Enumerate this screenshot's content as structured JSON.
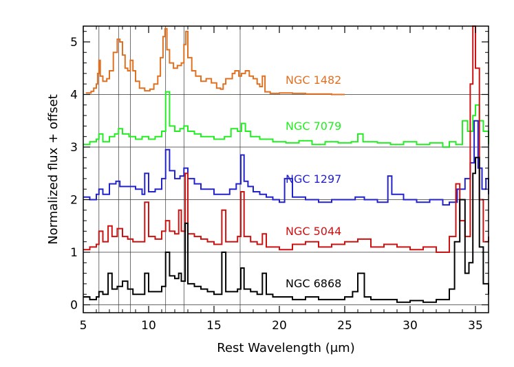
{
  "chart_data": {
    "type": "line",
    "xlabel": "Rest Wavelength (μm)",
    "ylabel": "Normalized flux + offset",
    "xlim": [
      5,
      36
    ],
    "ylim": [
      -0.15,
      5.3
    ],
    "xticks": [
      5,
      10,
      15,
      20,
      25,
      30,
      35
    ],
    "yticks": [
      0,
      1,
      2,
      3,
      4,
      5
    ],
    "horizontal_reference_lines": [
      0,
      1,
      2,
      3,
      4
    ],
    "vertical_reference_lines": [
      6.2,
      7.7,
      8.6,
      11.3,
      12.7,
      17.0
    ],
    "grid": false,
    "series": [
      {
        "name": "NGC 1482",
        "color": "#e07020",
        "offset": 4,
        "x": [
          5.2,
          5.6,
          5.8,
          6.0,
          6.1,
          6.2,
          6.3,
          6.5,
          6.8,
          7.0,
          7.3,
          7.6,
          7.8,
          8.0,
          8.2,
          8.4,
          8.6,
          8.8,
          9.0,
          9.3,
          9.7,
          10.1,
          10.4,
          10.7,
          10.9,
          11.1,
          11.25,
          11.4,
          11.6,
          11.9,
          12.2,
          12.5,
          12.7,
          12.85,
          13.0,
          13.3,
          13.6,
          14.0,
          14.4,
          14.8,
          15.2,
          15.5,
          15.7,
          15.9,
          16.2,
          16.4,
          16.6,
          16.9,
          17.1,
          17.4,
          17.7,
          18.0,
          18.3,
          18.5,
          18.7,
          18.9,
          19.3,
          20,
          21,
          22,
          23,
          24,
          25
        ],
        "values": [
          4.03,
          4.06,
          4.12,
          4.2,
          4.4,
          4.65,
          4.35,
          4.25,
          4.3,
          4.45,
          4.8,
          5.05,
          5.0,
          4.75,
          4.5,
          4.45,
          4.65,
          4.45,
          4.25,
          4.12,
          4.07,
          4.1,
          4.2,
          4.35,
          4.7,
          5.1,
          5.25,
          4.85,
          4.6,
          4.5,
          4.55,
          4.6,
          4.95,
          5.2,
          4.7,
          4.45,
          4.35,
          4.25,
          4.3,
          4.22,
          4.12,
          4.1,
          4.2,
          4.3,
          4.3,
          4.4,
          4.45,
          4.35,
          4.4,
          4.45,
          4.35,
          4.3,
          4.2,
          4.15,
          4.35,
          4.05,
          4.02,
          4.03,
          4.02,
          4.01,
          4.01,
          4.0,
          4.0
        ]
      },
      {
        "name": "NGC 7079",
        "color": "#22ee22",
        "offset": 3,
        "x": [
          5.0,
          5.5,
          6.0,
          6.2,
          6.5,
          7.0,
          7.4,
          7.7,
          8.0,
          8.5,
          9.0,
          9.5,
          10.0,
          10.5,
          11.0,
          11.3,
          11.6,
          12.0,
          12.4,
          12.7,
          13.0,
          13.5,
          14.0,
          15.0,
          15.8,
          16.3,
          16.8,
          17.1,
          17.4,
          17.8,
          18.5,
          19.5,
          20.5,
          21.5,
          22.5,
          23.5,
          24.5,
          25.5,
          26.0,
          26.4,
          27.5,
          28.5,
          29.5,
          30.5,
          31.5,
          32.5,
          33.0,
          33.5,
          34.0,
          34.4,
          34.8,
          35.0,
          35.3,
          35.6,
          36.0
        ],
        "values": [
          3.05,
          3.1,
          3.15,
          3.25,
          3.1,
          3.2,
          3.25,
          3.35,
          3.25,
          3.2,
          3.15,
          3.2,
          3.15,
          3.2,
          3.3,
          4.05,
          3.4,
          3.3,
          3.35,
          3.4,
          3.3,
          3.25,
          3.2,
          3.15,
          3.2,
          3.35,
          3.3,
          3.45,
          3.3,
          3.2,
          3.15,
          3.1,
          3.08,
          3.12,
          3.05,
          3.1,
          3.08,
          3.1,
          3.25,
          3.1,
          3.08,
          3.05,
          3.1,
          3.05,
          3.08,
          3.0,
          3.1,
          3.05,
          3.5,
          3.3,
          3.6,
          3.8,
          3.5,
          3.3,
          3.05
        ]
      },
      {
        "name": "NGC 1297",
        "color": "#2222cc",
        "offset": 2,
        "x": [
          5.0,
          5.5,
          6.0,
          6.2,
          6.5,
          7.0,
          7.5,
          7.8,
          8.2,
          8.6,
          9.0,
          9.5,
          9.7,
          10.0,
          10.5,
          11.0,
          11.3,
          11.6,
          12.0,
          12.4,
          12.7,
          13.0,
          13.5,
          14.0,
          15.0,
          15.7,
          16.2,
          16.7,
          17.05,
          17.3,
          17.6,
          18.0,
          18.5,
          19.0,
          19.5,
          20.0,
          20.4,
          21.0,
          22.0,
          23.0,
          24.0,
          25.0,
          25.8,
          26.5,
          27.5,
          28.3,
          28.6,
          29.5,
          30.5,
          31.5,
          32.5,
          33.0,
          33.6,
          34.2,
          34.6,
          34.9,
          35.2,
          35.5,
          35.8,
          36.0
        ],
        "values": [
          2.05,
          2.0,
          2.1,
          2.2,
          2.1,
          2.3,
          2.35,
          2.25,
          2.25,
          2.25,
          2.2,
          2.1,
          2.5,
          2.15,
          2.2,
          2.4,
          2.95,
          2.55,
          2.4,
          2.45,
          2.6,
          2.4,
          2.3,
          2.2,
          2.1,
          2.1,
          2.2,
          2.3,
          2.85,
          2.35,
          2.25,
          2.15,
          2.1,
          2.05,
          2.0,
          1.95,
          2.4,
          2.05,
          2.0,
          1.95,
          2.0,
          2.0,
          2.05,
          2.0,
          1.95,
          2.45,
          2.1,
          2.0,
          1.95,
          2.0,
          1.9,
          1.95,
          2.2,
          2.4,
          2.7,
          3.5,
          2.6,
          2.2,
          2.4,
          2.1
        ]
      },
      {
        "name": "NGC 5044",
        "color": "#cc1111",
        "offset": 1,
        "x": [
          5.0,
          5.5,
          6.0,
          6.2,
          6.5,
          6.9,
          7.2,
          7.6,
          8.0,
          8.4,
          8.8,
          9.3,
          9.7,
          10.0,
          10.5,
          11.0,
          11.3,
          11.6,
          12.0,
          12.3,
          12.5,
          12.8,
          13.0,
          13.5,
          14.0,
          14.5,
          15.0,
          15.6,
          15.9,
          16.3,
          16.8,
          17.05,
          17.3,
          17.8,
          18.3,
          18.7,
          19.0,
          19.5,
          20.0,
          21.0,
          22.0,
          23.0,
          24.0,
          25.0,
          26.0,
          27.0,
          28.0,
          29.0,
          30.0,
          31.0,
          32.0,
          33.0,
          33.5,
          33.8,
          34.2,
          34.6,
          34.8,
          35.0,
          35.3,
          35.6,
          36.0
        ],
        "values": [
          1.05,
          1.1,
          1.15,
          1.4,
          1.2,
          1.5,
          1.3,
          1.45,
          1.3,
          1.25,
          1.2,
          1.2,
          1.95,
          1.3,
          1.25,
          1.4,
          1.6,
          1.4,
          1.35,
          1.8,
          1.4,
          2.5,
          1.35,
          1.3,
          1.25,
          1.2,
          1.15,
          1.8,
          1.2,
          1.2,
          1.3,
          2.15,
          1.3,
          1.2,
          1.15,
          1.35,
          1.1,
          1.1,
          1.05,
          1.15,
          1.2,
          1.1,
          1.15,
          1.2,
          1.25,
          1.1,
          1.15,
          1.1,
          1.05,
          1.1,
          1.0,
          1.3,
          2.3,
          1.6,
          1.3,
          4.2,
          5.3,
          4.5,
          2.0,
          1.2,
          1.3
        ]
      },
      {
        "name": "NGC 6868",
        "color": "#000000",
        "offset": 0,
        "x": [
          5.0,
          5.5,
          6.0,
          6.2,
          6.5,
          6.9,
          7.2,
          7.6,
          8.0,
          8.4,
          8.8,
          9.3,
          9.7,
          10.0,
          10.5,
          11.0,
          11.3,
          11.6,
          12.0,
          12.3,
          12.5,
          12.8,
          13.0,
          13.5,
          14.0,
          14.5,
          15.0,
          15.6,
          15.9,
          16.3,
          16.8,
          17.05,
          17.3,
          17.8,
          18.3,
          18.7,
          19.0,
          19.5,
          20.0,
          21.0,
          22.0,
          23.0,
          24.0,
          25.0,
          25.6,
          26.0,
          26.5,
          27.0,
          28.0,
          29.0,
          30.0,
          31.0,
          32.0,
          33.0,
          33.4,
          33.8,
          34.2,
          34.5,
          34.8,
          35.0,
          35.3,
          35.6,
          36.0
        ],
        "values": [
          0.15,
          0.1,
          0.15,
          0.25,
          0.2,
          0.6,
          0.3,
          0.35,
          0.45,
          0.3,
          0.2,
          0.2,
          0.6,
          0.25,
          0.25,
          0.35,
          1.0,
          0.55,
          0.5,
          0.6,
          0.45,
          1.55,
          0.4,
          0.35,
          0.3,
          0.25,
          0.2,
          1.0,
          0.25,
          0.25,
          0.3,
          0.7,
          0.3,
          0.25,
          0.2,
          0.6,
          0.2,
          0.15,
          0.15,
          0.1,
          0.15,
          0.1,
          0.1,
          0.15,
          0.25,
          0.6,
          0.15,
          0.1,
          0.1,
          0.05,
          0.08,
          0.05,
          0.1,
          0.3,
          1.2,
          2.0,
          0.6,
          0.8,
          2.5,
          2.8,
          1.1,
          0.4,
          0.2
        ]
      }
    ]
  }
}
